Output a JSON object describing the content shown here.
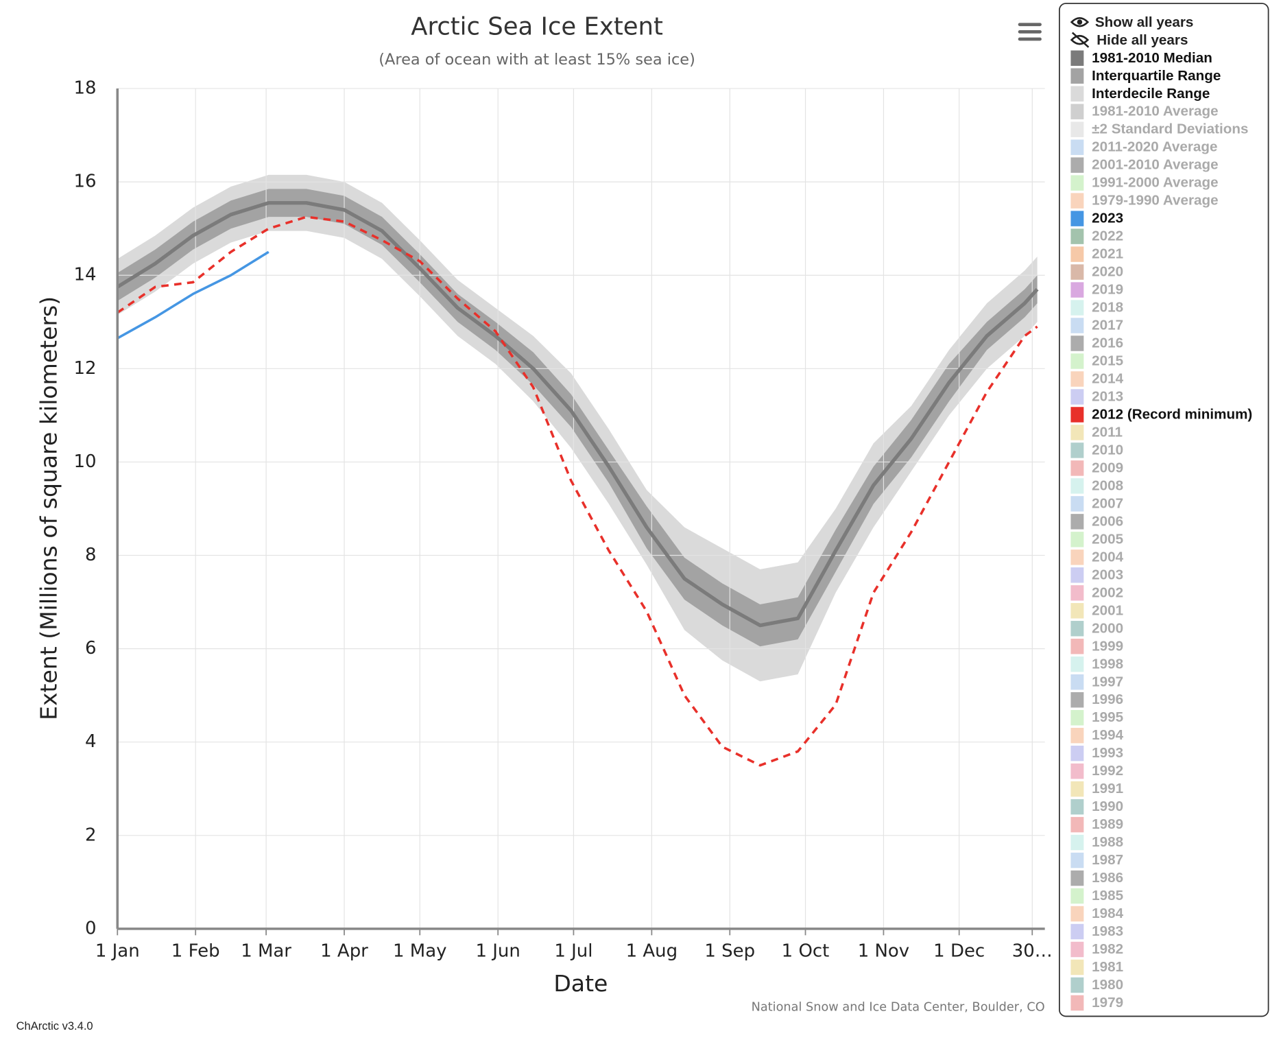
{
  "chart_data": {
    "type": "line",
    "title": "Arctic Sea Ice Extent",
    "subtitle": "(Area of ocean with at least 15% sea ice)",
    "x_label": "Date",
    "y_label": "Extent (Millions of square kilometers)",
    "credit": "National Snow and Ice Data Center, Boulder, CO",
    "version": "ChArctic v3.4.0",
    "show_all": "Show all years",
    "hide_all": "Hide all years",
    "grid": true,
    "xlim": [
      0,
      368
    ],
    "ylim": [
      0,
      18
    ],
    "yticks": [
      0,
      2,
      4,
      6,
      8,
      10,
      12,
      14,
      16,
      18
    ],
    "xticks": [
      {
        "value": 0,
        "label": "1 Jan"
      },
      {
        "value": 31,
        "label": "1 Feb"
      },
      {
        "value": 59,
        "label": "1 Mar"
      },
      {
        "value": 90,
        "label": "1 Apr"
      },
      {
        "value": 120,
        "label": "1 May"
      },
      {
        "value": 151,
        "label": "1 Jun"
      },
      {
        "value": 181,
        "label": "1 Jul"
      },
      {
        "value": 212,
        "label": "1 Aug"
      },
      {
        "value": 243,
        "label": "1 Sep"
      },
      {
        "value": 273,
        "label": "1 Oct"
      },
      {
        "value": 304,
        "label": "1 Nov"
      },
      {
        "value": 334,
        "label": "1 Dec"
      },
      {
        "value": 363,
        "label": "30…"
      }
    ],
    "x": [
      0,
      15,
      30,
      45,
      60,
      75,
      90,
      105,
      120,
      135,
      150,
      165,
      180,
      195,
      210,
      225,
      240,
      255,
      270,
      285,
      300,
      315,
      330,
      345,
      360,
      365
    ],
    "series": [
      {
        "name": "1981-2010 Median",
        "color": "#7b7b7b",
        "visible": true,
        "values": [
          13.75,
          14.25,
          14.85,
          15.3,
          15.55,
          15.55,
          15.4,
          14.95,
          14.15,
          13.3,
          12.7,
          12.0,
          11.1,
          9.9,
          8.6,
          7.5,
          6.95,
          6.5,
          6.65,
          8.1,
          9.5,
          10.5,
          11.7,
          12.7,
          13.4,
          13.7
        ]
      },
      {
        "name": "Interquartile Range",
        "color": "#a3a3a3",
        "visible": true,
        "low": [
          13.45,
          13.95,
          14.55,
          15.0,
          15.25,
          15.25,
          15.1,
          14.65,
          13.85,
          13.0,
          12.4,
          11.65,
          10.75,
          9.55,
          8.15,
          7.05,
          6.5,
          6.05,
          6.2,
          7.65,
          9.1,
          10.1,
          11.3,
          12.4,
          13.1,
          13.4
        ],
        "high": [
          14.05,
          14.55,
          15.15,
          15.6,
          15.85,
          15.85,
          15.7,
          15.25,
          14.45,
          13.6,
          13.0,
          12.35,
          11.45,
          10.25,
          9.05,
          7.95,
          7.4,
          6.95,
          7.1,
          8.55,
          9.9,
          10.9,
          12.1,
          13.0,
          13.7,
          14.0
        ]
      },
      {
        "name": "Interdecile Range",
        "color": "#dadada",
        "visible": true,
        "low": [
          13.15,
          13.65,
          14.25,
          14.7,
          14.95,
          14.95,
          14.8,
          14.35,
          13.55,
          12.7,
          12.1,
          11.3,
          10.3,
          9.1,
          7.8,
          6.4,
          5.75,
          5.3,
          5.45,
          7.2,
          8.6,
          9.8,
          11.0,
          12.0,
          12.7,
          13.0
        ],
        "high": [
          14.35,
          14.85,
          15.45,
          15.9,
          16.15,
          16.15,
          16.0,
          15.55,
          14.75,
          13.9,
          13.3,
          12.7,
          11.9,
          10.7,
          9.4,
          8.6,
          8.15,
          7.7,
          7.85,
          9.0,
          10.4,
          11.2,
          12.4,
          13.4,
          14.1,
          14.4
        ]
      },
      {
        "name": "1981-2010 Average",
        "color": "#cfcfcf",
        "visible": false
      },
      {
        "name": "±2 Standard Deviations",
        "color": "#e8e8e8",
        "visible": false
      },
      {
        "name": "2011-2020 Average",
        "color": "#c9dcf2",
        "visible": false
      },
      {
        "name": "2001-2010 Average",
        "color": "#acacac",
        "visible": false
      },
      {
        "name": "1991-2000 Average",
        "color": "#d4f2cc",
        "visible": false
      },
      {
        "name": "1979-1990 Average",
        "color": "#f9d4bc",
        "visible": false
      },
      {
        "name": "2023",
        "color": "#4596e3",
        "visible": true,
        "values": [
          12.65,
          13.1,
          13.6,
          14.0,
          14.5,
          null,
          null,
          null,
          null,
          null,
          null,
          null,
          null,
          null,
          null,
          null,
          null,
          null,
          null,
          null,
          null,
          null,
          null,
          null,
          null,
          null
        ]
      },
      {
        "name": "2022",
        "color": "#a3c3ad",
        "visible": false
      },
      {
        "name": "2021",
        "color": "#f6c9a8",
        "visible": false
      },
      {
        "name": "2020",
        "color": "#d9b8a8",
        "visible": false
      },
      {
        "name": "2019",
        "color": "#d9a8e0",
        "visible": false
      },
      {
        "name": "2018",
        "color": "#d6f2ee",
        "visible": false
      },
      {
        "name": "2017",
        "color": "#c9dcf2",
        "visible": false
      },
      {
        "name": "2016",
        "color": "#acacac",
        "visible": false
      },
      {
        "name": "2015",
        "color": "#d4f2cc",
        "visible": false
      },
      {
        "name": "2014",
        "color": "#f9d4bc",
        "visible": false
      },
      {
        "name": "2013",
        "color": "#cccdf2",
        "visible": false
      },
      {
        "name": "2012 (Record minimum)",
        "color": "#e8302a",
        "visible": true,
        "dash": true,
        "values": [
          13.2,
          13.75,
          13.85,
          14.5,
          15.0,
          15.25,
          15.15,
          14.75,
          14.3,
          13.5,
          12.8,
          11.6,
          9.6,
          8.1,
          6.8,
          5.0,
          3.9,
          3.5,
          3.8,
          4.8,
          7.2,
          8.5,
          10.0,
          11.5,
          12.7,
          12.9
        ]
      },
      {
        "name": "2011",
        "color": "#f2e6b8",
        "visible": false
      },
      {
        "name": "2010",
        "color": "#b0cfcc",
        "visible": false
      },
      {
        "name": "2009",
        "color": "#f2b8b8",
        "visible": false
      },
      {
        "name": "2008",
        "color": "#d6f2ee",
        "visible": false
      },
      {
        "name": "2007",
        "color": "#c9dcf2",
        "visible": false
      },
      {
        "name": "2006",
        "color": "#acacac",
        "visible": false
      },
      {
        "name": "2005",
        "color": "#d4f2cc",
        "visible": false
      },
      {
        "name": "2004",
        "color": "#f9d4bc",
        "visible": false
      },
      {
        "name": "2003",
        "color": "#cccdf2",
        "visible": false
      },
      {
        "name": "2002",
        "color": "#f2bccb",
        "visible": false
      },
      {
        "name": "2001",
        "color": "#f2e6b8",
        "visible": false
      },
      {
        "name": "2000",
        "color": "#b0cfcc",
        "visible": false
      },
      {
        "name": "1999",
        "color": "#f2b8b8",
        "visible": false
      },
      {
        "name": "1998",
        "color": "#d6f2ee",
        "visible": false
      },
      {
        "name": "1997",
        "color": "#c9dcf2",
        "visible": false
      },
      {
        "name": "1996",
        "color": "#acacac",
        "visible": false
      },
      {
        "name": "1995",
        "color": "#d4f2cc",
        "visible": false
      },
      {
        "name": "1994",
        "color": "#f9d4bc",
        "visible": false
      },
      {
        "name": "1993",
        "color": "#cccdf2",
        "visible": false
      },
      {
        "name": "1992",
        "color": "#f2bccb",
        "visible": false
      },
      {
        "name": "1991",
        "color": "#f2e6b8",
        "visible": false
      },
      {
        "name": "1990",
        "color": "#b0cfcc",
        "visible": false
      },
      {
        "name": "1989",
        "color": "#f2b8b8",
        "visible": false
      },
      {
        "name": "1988",
        "color": "#d6f2ee",
        "visible": false
      },
      {
        "name": "1987",
        "color": "#c9dcf2",
        "visible": false
      },
      {
        "name": "1986",
        "color": "#acacac",
        "visible": false
      },
      {
        "name": "1985",
        "color": "#d4f2cc",
        "visible": false
      },
      {
        "name": "1984",
        "color": "#f9d4bc",
        "visible": false
      },
      {
        "name": "1983",
        "color": "#cccdf2",
        "visible": false
      },
      {
        "name": "1982",
        "color": "#f2bccb",
        "visible": false
      },
      {
        "name": "1981",
        "color": "#f2e6b8",
        "visible": false
      },
      {
        "name": "1980",
        "color": "#b0cfcc",
        "visible": false
      },
      {
        "name": "1979",
        "color": "#f2b8b8",
        "visible": false
      }
    ]
  }
}
